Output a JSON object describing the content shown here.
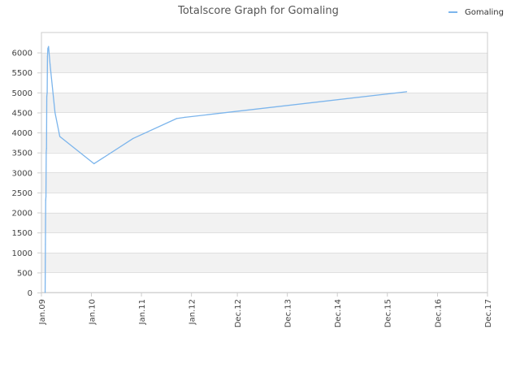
{
  "chart_data": {
    "type": "line",
    "title": "Totalscore Graph for Gomaling",
    "xlabel": "",
    "ylabel": "",
    "x_ticks": [
      "Jan.09",
      "Jan.10",
      "Jan.11",
      "Jan.12",
      "Dec.12",
      "Dec.13",
      "Dec.14",
      "Dec.15",
      "Dec.16",
      "Dec.17"
    ],
    "y_ticks": [
      0,
      500,
      1000,
      1500,
      2000,
      2500,
      3000,
      3500,
      4000,
      4500,
      5000,
      5500,
      6000
    ],
    "ylim": [
      0,
      6500
    ],
    "grid": true,
    "legend_position": "top-right",
    "series": [
      {
        "name": "Gomaling",
        "color": "#7cb5ec",
        "points": [
          [
            "2009-01-28",
            0
          ],
          [
            "2009-01-30",
            1200
          ],
          [
            "2009-02-01",
            2300
          ],
          [
            "2009-02-03",
            2400
          ],
          [
            "2009-02-05",
            3500
          ],
          [
            "2009-02-07",
            3600
          ],
          [
            "2009-02-09",
            4900
          ],
          [
            "2009-02-12",
            5000
          ],
          [
            "2009-02-14",
            5900
          ],
          [
            "2009-02-17",
            6100
          ],
          [
            "2009-02-22",
            6150
          ],
          [
            "2009-03-05",
            5700
          ],
          [
            "2009-04-10",
            4500
          ],
          [
            "2009-05-15",
            3900
          ],
          [
            "2010-01-20",
            3220
          ],
          [
            "2010-11-01",
            3850
          ],
          [
            "2011-09-15",
            4350
          ],
          [
            "2011-11-15",
            4380
          ],
          [
            "2016-04-20",
            5020
          ]
        ]
      }
    ]
  }
}
